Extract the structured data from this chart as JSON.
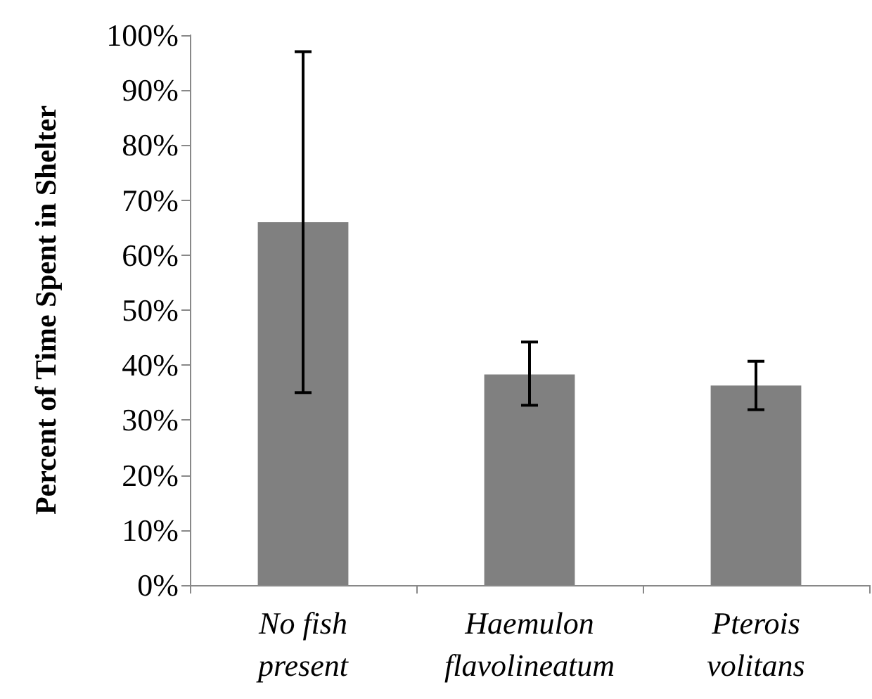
{
  "chart_data": {
    "type": "bar",
    "ylabel": "Percent of Time Spent in Shelter",
    "categories": [
      "No fish\npresent",
      "Haemulon\nflavolineatum",
      "Pterois\nvolitans"
    ],
    "values": [
      66,
      38.3,
      36.3
    ],
    "errors": [
      [
        35,
        97
      ],
      [
        32.7,
        44.2
      ],
      [
        31.9,
        40.7
      ]
    ],
    "color": "#808080",
    "ylim": [
      0,
      100
    ],
    "yticks": [
      {
        "value": 0,
        "label": "0%"
      },
      {
        "value": 10,
        "label": "10%"
      },
      {
        "value": 20,
        "label": "20%"
      },
      {
        "value": 30,
        "label": "30%"
      },
      {
        "value": 40,
        "label": "40%"
      },
      {
        "value": 50,
        "label": "50%"
      },
      {
        "value": 60,
        "label": "60%"
      },
      {
        "value": 70,
        "label": "70%"
      },
      {
        "value": 80,
        "label": "80%"
      },
      {
        "value": 90,
        "label": "90%"
      },
      {
        "value": 100,
        "label": "100%"
      }
    ],
    "grid": false
  }
}
